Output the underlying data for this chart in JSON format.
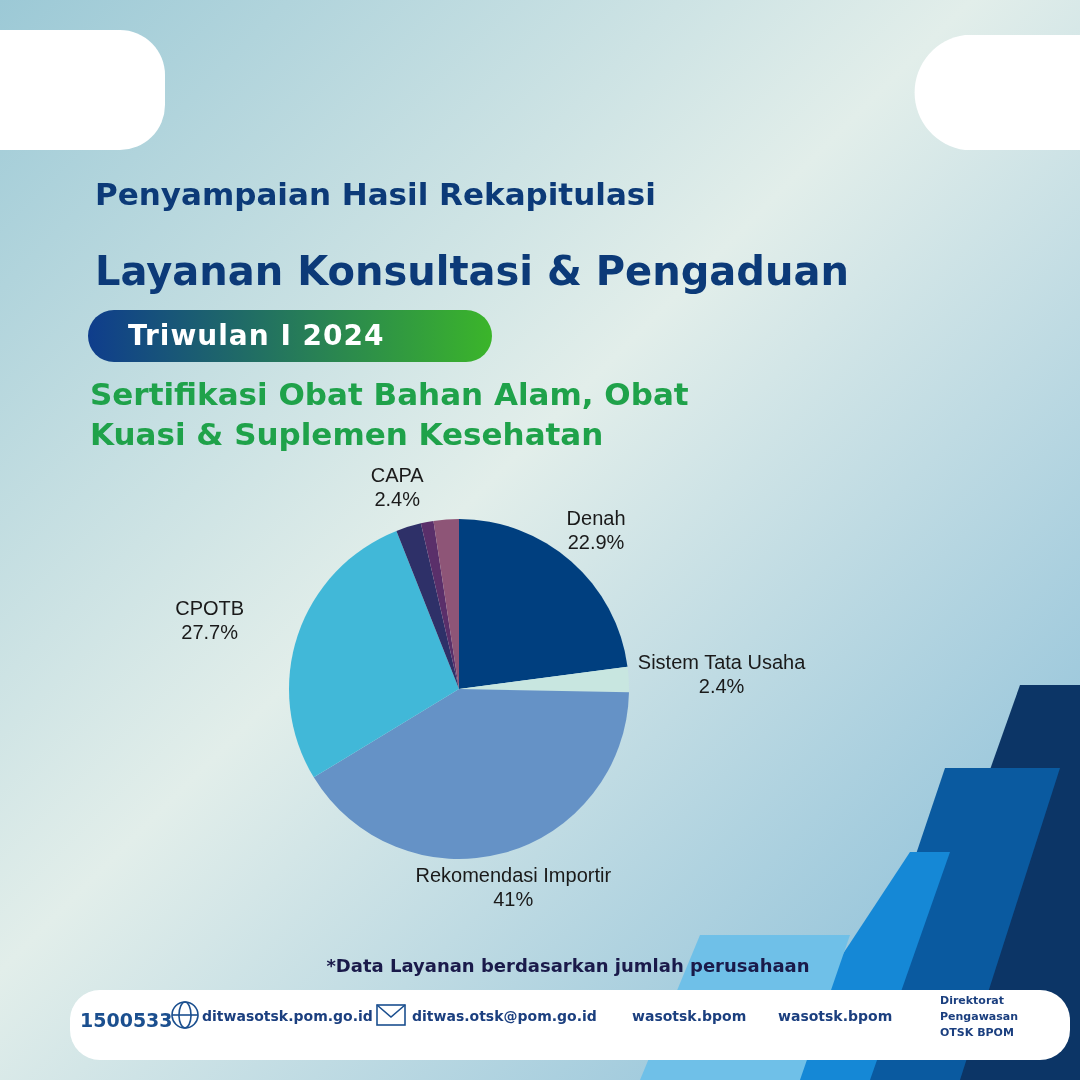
{
  "chart_data": {
    "type": "pie",
    "title": "Penyampaian Hasil Rekapitulasi",
    "subtitle": "Layanan Konsultasi & Pengaduan",
    "categories": [
      "Denah",
      "Sistem Tata Usaha",
      "Rekomendasi Importir",
      "CPOTB",
      "CAPA",
      null,
      null
    ],
    "values": [
      22.9,
      2.4,
      41,
      27.7,
      2.4,
      1.2,
      2.4
    ],
    "colors": [
      "#003f7f",
      "#c8e6e0",
      "#6592c6",
      "#41b8d8",
      "#2e3068",
      "#5a2f6a",
      "#8e5577"
    ],
    "value_labels": [
      "22.9%",
      "2.4%",
      "41%",
      "27.7%",
      "2.4%",
      null,
      null
    ],
    "annotations": [
      "Triwulan I 2024",
      "Sertifikasi Obat Bahan Alam, Obat Kuasi & Suplemen Kesehatan",
      "*Data Layanan berdasarkan jumlah perusahaan",
      "1500533",
      "ditwasotsk.pom.go.id",
      "ditwas.otsk@pom.go.id",
      "wasotsk.bpom",
      "wasotsk.bpom",
      "Direktorat Pengawasan OTSK BPOM"
    ]
  }
}
